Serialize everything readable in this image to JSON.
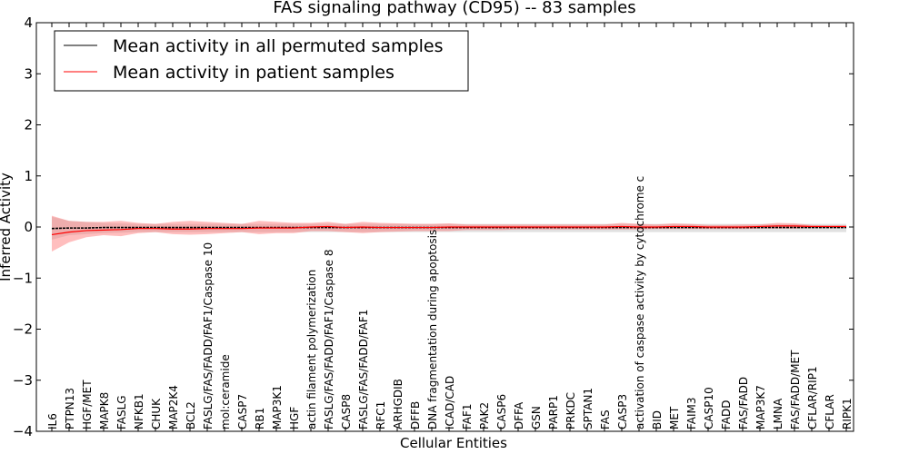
{
  "chart_data": {
    "type": "line",
    "title": "FAS signaling pathway (CD95) -- 83 samples",
    "xlabel": "Cellular Entities",
    "ylabel": "Inferred Activity",
    "ylim": [
      -4,
      4
    ],
    "yticks": [
      "4",
      "3",
      "2",
      "1",
      "0",
      "−1",
      "−2",
      "−3",
      "−4"
    ],
    "ytick_values": [
      4,
      3,
      2,
      1,
      0,
      -1,
      -2,
      -3,
      -4
    ],
    "grid": false,
    "legend_position": "top-left",
    "categories": [
      "IL6",
      "PTPN13",
      "HGF/MET",
      "MAPK8",
      "FASLG",
      "NFKB1",
      "CHUK",
      "MAP2K4",
      "BCL2",
      "FASLG/FAS/FADD/FAF1/Caspase 10",
      "mol:ceramide",
      "CASP7",
      "RB1",
      "MAP3K1",
      "HGF",
      "actin filament polymerization",
      "FASLG/FAS/FADD/FAF1/Caspase 8",
      "CASP8",
      "FASLG/FAS/FADD/FAF1",
      "RFC1",
      "ARHGDIB",
      "DFFB",
      "DNA fragmentation during apoptosis",
      "ICAD/CAD",
      "FAF1",
      "PAK2",
      "CASP6",
      "DFFA",
      "GSN",
      "PARP1",
      "PRKDC",
      "SPTAN1",
      "FAS",
      "CASP3",
      "activation of caspase activity by cytochrome c",
      "BID",
      "MET",
      "FAIM3",
      "CASP10",
      "FADD",
      "FAS/FADD",
      "MAP3K7",
      "LMNA",
      "FAS/FADD/MET",
      "CFLAR/RIP1",
      "CFLAR",
      "RIPK1"
    ],
    "series": [
      {
        "name": "Mean activity in all permuted samples",
        "color": "#000000",
        "values": [
          -0.03,
          -0.02,
          -0.02,
          -0.01,
          -0.01,
          -0.01,
          -0.01,
          -0.01,
          -0.01,
          -0.01,
          -0.01,
          -0.01,
          -0.01,
          -0.01,
          -0.01,
          -0.01,
          -0.01,
          -0.01,
          -0.01,
          -0.01,
          -0.01,
          -0.01,
          -0.01,
          -0.01,
          -0.01,
          -0.01,
          -0.01,
          -0.01,
          -0.01,
          -0.01,
          -0.01,
          -0.01,
          -0.01,
          -0.01,
          -0.01,
          -0.01,
          -0.01,
          -0.01,
          -0.01,
          -0.01,
          -0.01,
          -0.01,
          -0.01,
          -0.01,
          -0.01,
          -0.01,
          -0.01
        ],
        "band_upper": [
          0.2,
          0.12,
          0.1,
          0.08,
          0.07,
          0.06,
          0.06,
          0.06,
          0.06,
          0.06,
          0.06,
          0.06,
          0.06,
          0.06,
          0.06,
          0.06,
          0.06,
          0.06,
          0.06,
          0.06,
          0.06,
          0.06,
          0.06,
          0.06,
          0.06,
          0.06,
          0.06,
          0.06,
          0.06,
          0.06,
          0.06,
          0.06,
          0.06,
          0.06,
          0.06,
          0.06,
          0.06,
          0.06,
          0.06,
          0.06,
          0.06,
          0.06,
          0.06,
          0.06,
          0.06,
          0.06,
          0.06
        ],
        "band_lower": [
          -0.25,
          -0.16,
          -0.14,
          -0.12,
          -0.11,
          -0.1,
          -0.1,
          -0.1,
          -0.1,
          -0.1,
          -0.1,
          -0.1,
          -0.1,
          -0.1,
          -0.1,
          -0.1,
          -0.1,
          -0.1,
          -0.1,
          -0.1,
          -0.1,
          -0.1,
          -0.1,
          -0.1,
          -0.1,
          -0.1,
          -0.1,
          -0.1,
          -0.1,
          -0.1,
          -0.1,
          -0.1,
          -0.1,
          -0.1,
          -0.1,
          -0.1,
          -0.1,
          -0.1,
          -0.1,
          -0.1,
          -0.1,
          -0.1,
          -0.1,
          -0.1,
          -0.1,
          -0.1,
          -0.1
        ],
        "band_color": "#c8c8c8"
      },
      {
        "name": "Mean activity in patient samples",
        "color": "#ff0000",
        "values": [
          -0.15,
          -0.1,
          -0.07,
          -0.06,
          -0.05,
          -0.03,
          -0.03,
          -0.04,
          -0.04,
          -0.03,
          -0.03,
          -0.03,
          -0.02,
          -0.02,
          -0.02,
          0.0,
          0.01,
          -0.01,
          0.0,
          -0.01,
          -0.01,
          -0.01,
          -0.01,
          0.0,
          0.0,
          0.0,
          0.0,
          0.0,
          0.0,
          0.0,
          0.0,
          0.0,
          0.0,
          0.01,
          0.0,
          0.0,
          0.01,
          0.01,
          0.0,
          0.0,
          0.0,
          0.01,
          0.02,
          0.02,
          0.01,
          0.01,
          0.01
        ],
        "band_upper": [
          0.22,
          0.12,
          0.1,
          0.1,
          0.12,
          0.08,
          0.06,
          0.1,
          0.12,
          0.1,
          0.08,
          0.06,
          0.12,
          0.1,
          0.08,
          0.08,
          0.1,
          0.06,
          0.1,
          0.08,
          0.07,
          0.06,
          0.06,
          0.07,
          0.05,
          0.05,
          0.05,
          0.05,
          0.05,
          0.05,
          0.05,
          0.05,
          0.05,
          0.08,
          0.06,
          0.05,
          0.07,
          0.06,
          0.04,
          0.04,
          0.05,
          0.05,
          0.08,
          0.07,
          0.04,
          0.03,
          0.03
        ],
        "band_lower": [
          -0.48,
          -0.3,
          -0.2,
          -0.16,
          -0.18,
          -0.12,
          -0.1,
          -0.14,
          -0.15,
          -0.14,
          -0.12,
          -0.1,
          -0.14,
          -0.12,
          -0.12,
          -0.08,
          -0.08,
          -0.1,
          -0.12,
          -0.1,
          -0.09,
          -0.08,
          -0.08,
          -0.08,
          -0.06,
          -0.06,
          -0.06,
          -0.05,
          -0.05,
          -0.05,
          -0.05,
          -0.05,
          -0.05,
          -0.05,
          -0.05,
          -0.04,
          -0.04,
          -0.04,
          -0.04,
          -0.04,
          -0.04,
          -0.03,
          -0.03,
          -0.03,
          -0.02,
          -0.02,
          -0.02
        ],
        "band_color": "#ff6f6f"
      }
    ]
  }
}
